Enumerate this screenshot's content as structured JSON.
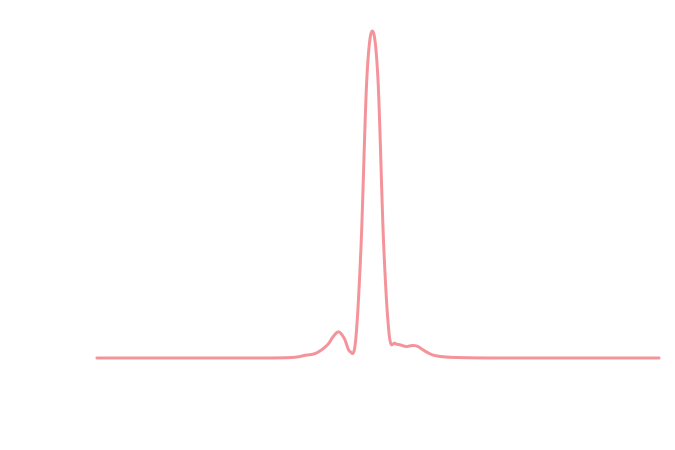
{
  "chart_data": {
    "type": "line",
    "title": "",
    "xlabel": "",
    "ylabel": "",
    "axes_visible": false,
    "grid": false,
    "xlim": [
      0,
      100
    ],
    "ylim": [
      0,
      1.05
    ],
    "series": [
      {
        "color": "#f4949a",
        "x": [
          0,
          10,
          20,
          30,
          35,
          37,
          39,
          41,
          42,
          43,
          44,
          45,
          46,
          47,
          48,
          49,
          50,
          51,
          52,
          53,
          54,
          55,
          56,
          57,
          58,
          59,
          60,
          62,
          65,
          70,
          80,
          90,
          100
        ],
        "y": [
          0.0,
          0.0,
          0.0,
          0.0,
          0.002,
          0.008,
          0.015,
          0.04,
          0.065,
          0.08,
          0.06,
          0.02,
          0.05,
          0.35,
          0.85,
          1.0,
          0.85,
          0.35,
          0.07,
          0.045,
          0.04,
          0.035,
          0.038,
          0.036,
          0.025,
          0.015,
          0.008,
          0.003,
          0.001,
          0.0,
          0.0,
          0.0,
          0.0
        ]
      }
    ]
  }
}
